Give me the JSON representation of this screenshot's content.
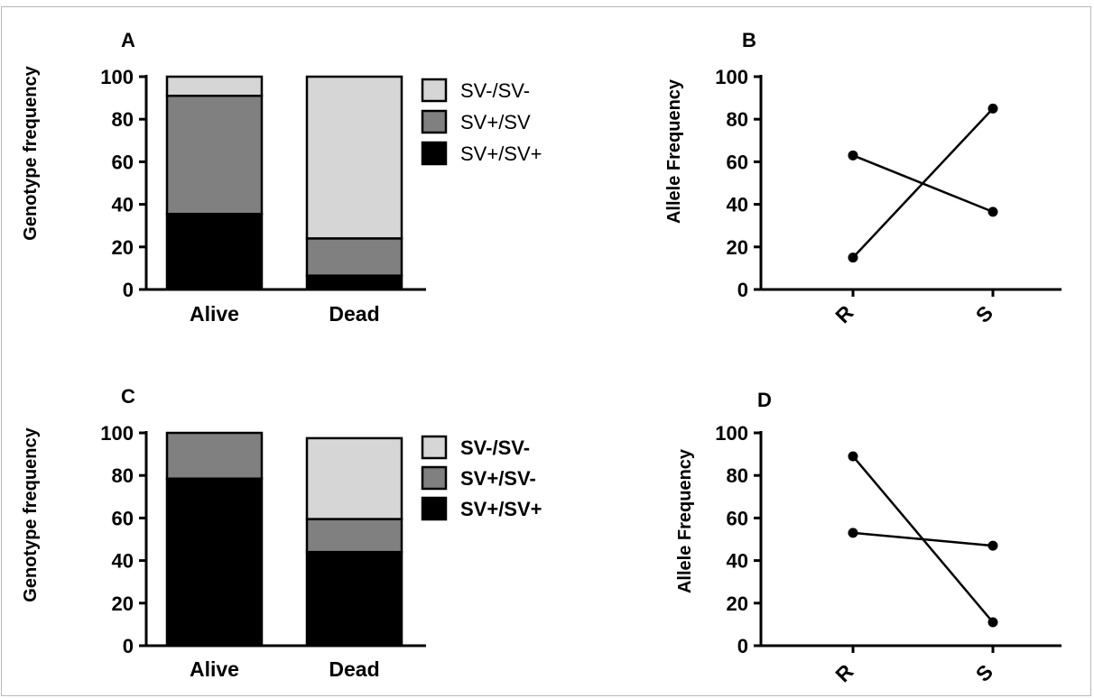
{
  "chart_data": [
    {
      "panel": "A",
      "type": "bar",
      "stacked": true,
      "categories": [
        "Alive",
        "Dead"
      ],
      "ylabel": "Genotype frequency",
      "ylim": [
        0,
        100
      ],
      "yticks": [
        "0",
        "20",
        "40",
        "60",
        "80",
        "100"
      ],
      "legend_position": "right",
      "series": [
        {
          "name": "SV+/SV+",
          "color": "#000000",
          "values": [
            35.5,
            6.5
          ]
        },
        {
          "name": "SV+/SV",
          "color": "#808080",
          "values": [
            55.5,
            17.5
          ]
        },
        {
          "name": "SV-/SV-",
          "color": "#d6d6d6",
          "values": [
            9,
            76
          ]
        }
      ],
      "legend_order": [
        "SV-/SV-",
        "SV+/SV",
        "SV+/SV+"
      ]
    },
    {
      "panel": "B",
      "type": "line",
      "categories": [
        "R",
        "S"
      ],
      "ylabel": "Allele Frequency",
      "ylim": [
        0,
        100
      ],
      "yticks": [
        "0",
        "20",
        "40",
        "60",
        "80",
        "100"
      ],
      "series": [
        {
          "values": [
            63,
            36.5
          ]
        },
        {
          "values": [
            15,
            85
          ]
        }
      ]
    },
    {
      "panel": "C",
      "type": "bar",
      "stacked": true,
      "categories": [
        "Alive",
        "Dead"
      ],
      "ylabel": "Genotype frequency",
      "ylim": [
        0,
        100
      ],
      "yticks": [
        "0",
        "20",
        "40",
        "60",
        "80",
        "100"
      ],
      "legend_position": "right",
      "series": [
        {
          "name": "SV+/SV+",
          "color": "#000000",
          "values": [
            78.5,
            44
          ]
        },
        {
          "name": "SV+/SV-",
          "color": "#808080",
          "values": [
            21.5,
            15.5
          ]
        },
        {
          "name": "SV-/SV-",
          "color": "#d6d6d6",
          "values": [
            0,
            38
          ]
        }
      ],
      "legend_order": [
        "SV-/SV-",
        "SV+/SV-",
        "SV+/SV+"
      ]
    },
    {
      "panel": "D",
      "type": "line",
      "categories": [
        "R",
        "S"
      ],
      "ylabel": "Allele Frequency",
      "ylim": [
        0,
        100
      ],
      "yticks": [
        "0",
        "20",
        "40",
        "60",
        "80",
        "100"
      ],
      "series": [
        {
          "values": [
            53,
            47
          ]
        },
        {
          "values": [
            89,
            11
          ]
        }
      ]
    }
  ]
}
